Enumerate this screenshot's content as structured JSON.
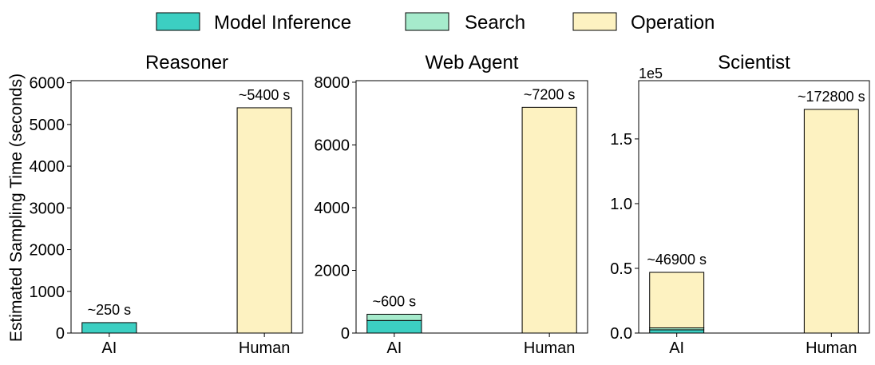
{
  "legend": {
    "placement": "top-center",
    "items": [
      {
        "label": "Model Inference",
        "color": "#3ccfc2"
      },
      {
        "label": "Search",
        "color": "#a6ebcc"
      },
      {
        "label": "Operation",
        "color": "#fdf2c1"
      }
    ]
  },
  "ylabel": "Estimated Sampling Time (seconds)",
  "chart_data": [
    {
      "type": "bar",
      "stacked": true,
      "title": "Reasoner",
      "categories": [
        "AI",
        "Human"
      ],
      "ylim": [
        0,
        6050
      ],
      "yticks": [
        0,
        1000,
        2000,
        3000,
        4000,
        5000,
        6000
      ],
      "ytick_labels": [
        "0",
        "1000",
        "2000",
        "3000",
        "4000",
        "5000",
        "6000"
      ],
      "offset_label": "",
      "series": [
        {
          "name": "Model Inference",
          "values": [
            250,
            0
          ]
        },
        {
          "name": "Search",
          "values": [
            0,
            0
          ]
        },
        {
          "name": "Operation",
          "values": [
            0,
            5400
          ]
        }
      ],
      "annotations": [
        "~250 s",
        "~5400 s"
      ]
    },
    {
      "type": "bar",
      "stacked": true,
      "title": "Web Agent",
      "categories": [
        "AI",
        "Human"
      ],
      "ylim": [
        0,
        8050
      ],
      "yticks": [
        0,
        2000,
        4000,
        6000,
        8000
      ],
      "ytick_labels": [
        "0",
        "2000",
        "4000",
        "6000",
        "8000"
      ],
      "offset_label": "",
      "series": [
        {
          "name": "Model Inference",
          "values": [
            400,
            0
          ]
        },
        {
          "name": "Search",
          "values": [
            200,
            0
          ]
        },
        {
          "name": "Operation",
          "values": [
            0,
            7200
          ]
        }
      ],
      "annotations": [
        "~600 s",
        "~7200 s"
      ]
    },
    {
      "type": "bar",
      "stacked": true,
      "title": "Scientist",
      "categories": [
        "AI",
        "Human"
      ],
      "ylim": [
        0,
        195000
      ],
      "yticks": [
        0,
        50000,
        100000,
        150000
      ],
      "ytick_labels": [
        "0.0",
        "0.5",
        "1.0",
        "1.5"
      ],
      "offset_label": "1e5",
      "series": [
        {
          "name": "Model Inference",
          "values": [
            2500,
            0
          ]
        },
        {
          "name": "Search",
          "values": [
            1500,
            0
          ]
        },
        {
          "name": "Operation",
          "values": [
            42900,
            172800
          ]
        }
      ],
      "annotations": [
        "~46900 s",
        "~172800 s"
      ]
    }
  ]
}
